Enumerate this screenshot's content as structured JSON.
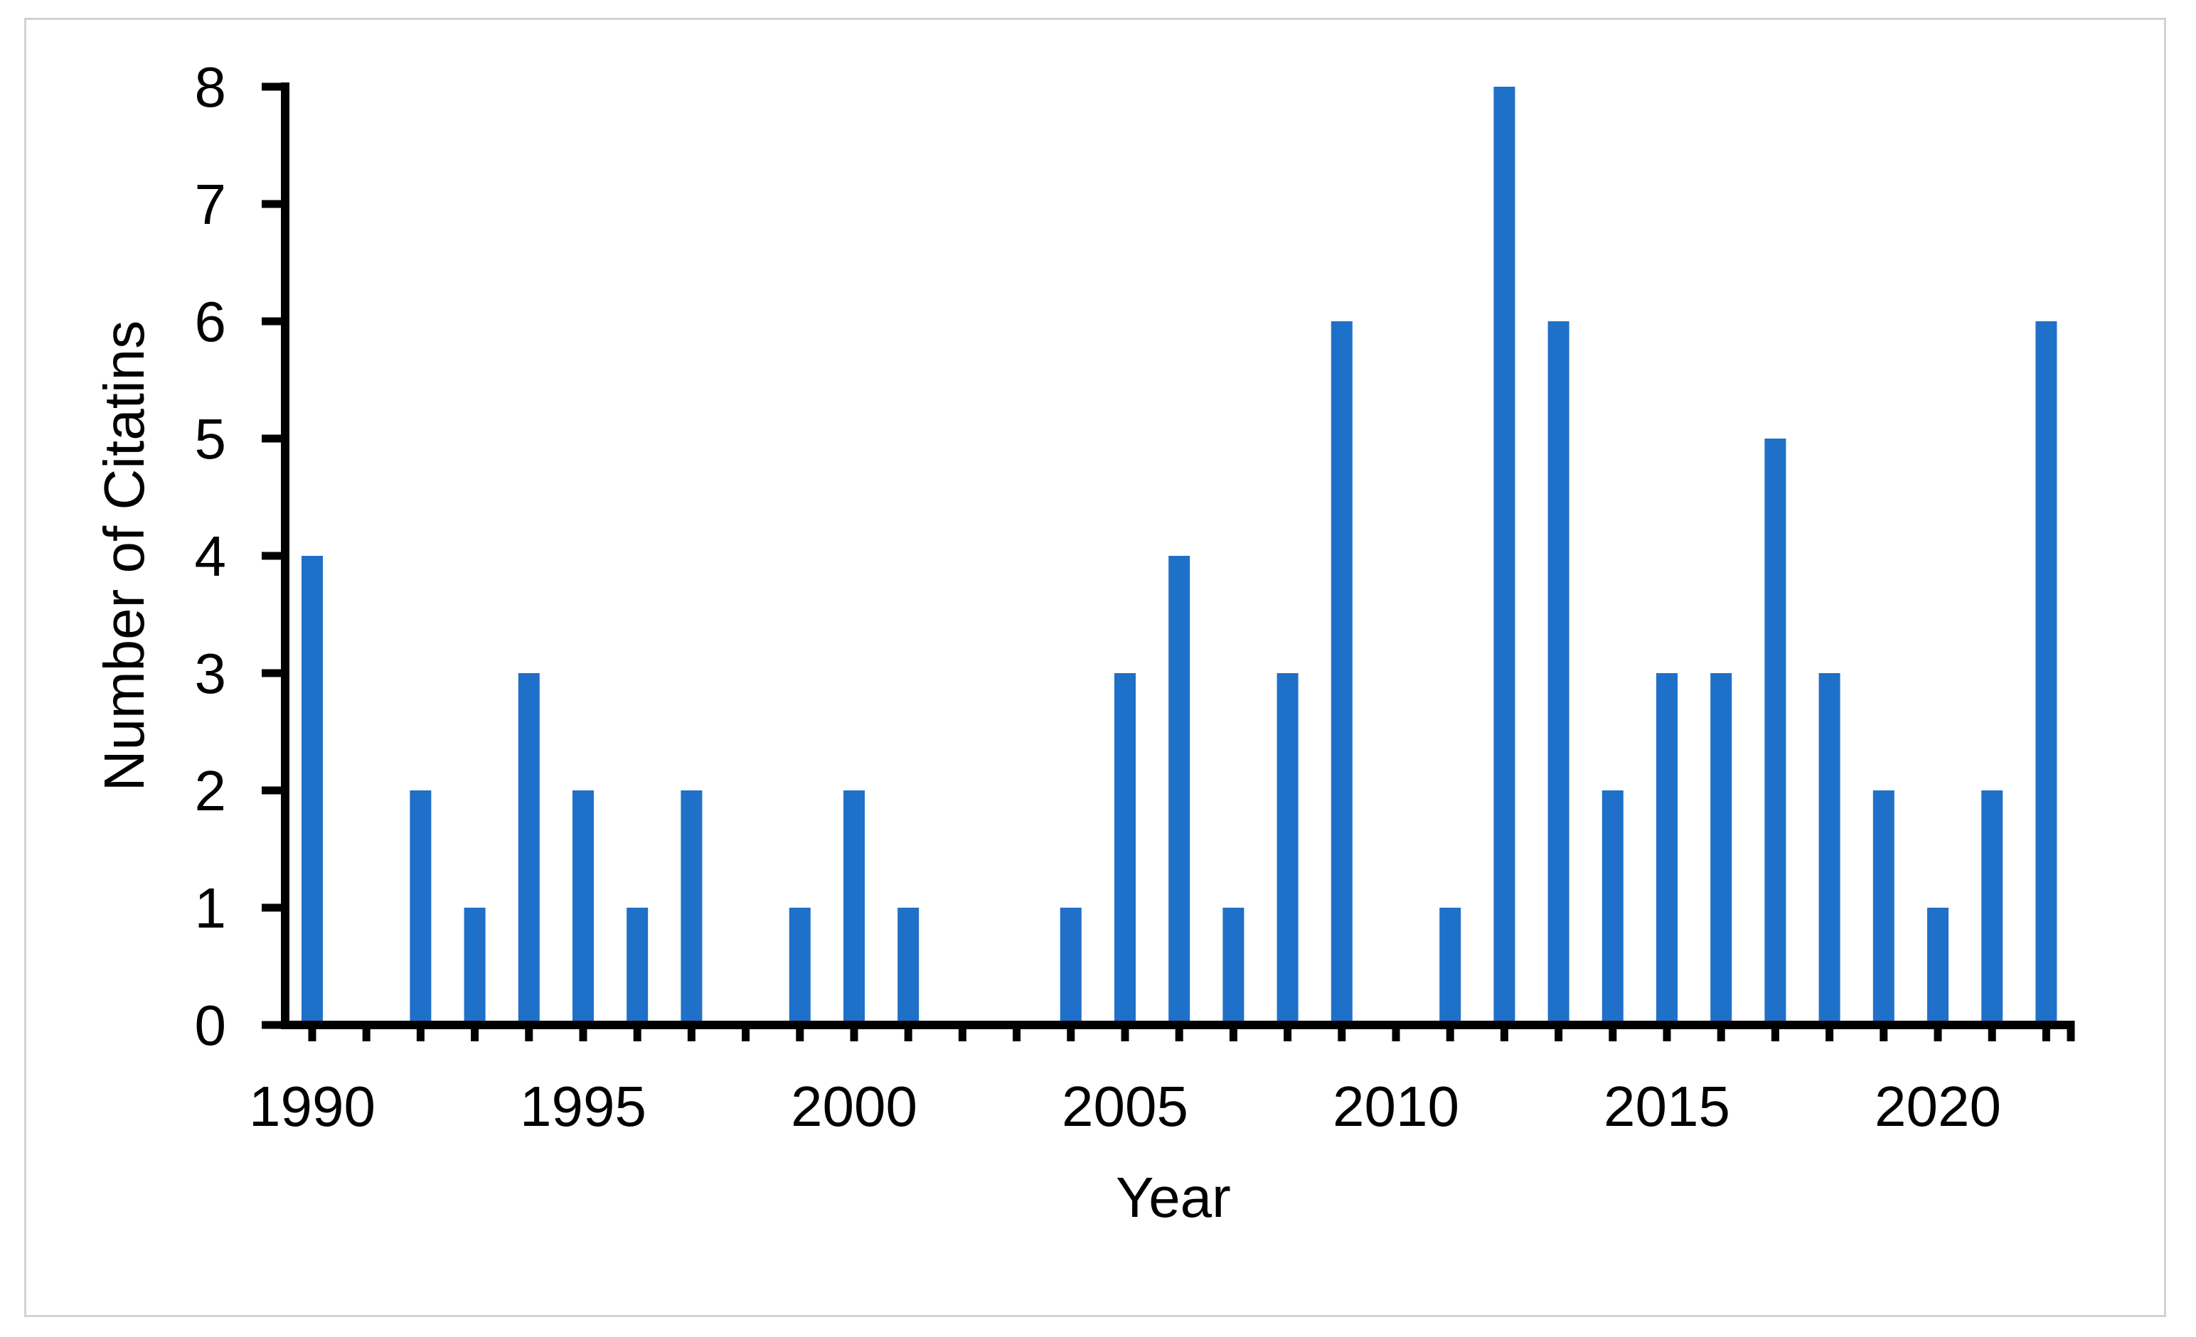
{
  "figure": {
    "frame_border_color": "#d2d2d2",
    "background_color": "#ffffff"
  },
  "chart_data": {
    "type": "bar",
    "title": "",
    "xlabel": "Year",
    "ylabel": "Number of Citatins",
    "categories": [
      1990,
      1991,
      1992,
      1993,
      1994,
      1995,
      1996,
      1997,
      1998,
      1999,
      2000,
      2001,
      2002,
      2003,
      2004,
      2005,
      2006,
      2007,
      2008,
      2009,
      2010,
      2011,
      2012,
      2013,
      2014,
      2015,
      2016,
      2017,
      2018,
      2019,
      2020,
      2021,
      2022
    ],
    "values": [
      4,
      0,
      2,
      1,
      3,
      2,
      1,
      2,
      0,
      1,
      2,
      1,
      0,
      0,
      1,
      3,
      4,
      1,
      3,
      6,
      0,
      1,
      8,
      6,
      2,
      3,
      3,
      5,
      3,
      2,
      1,
      2,
      6
    ],
    "ylim": [
      0,
      8
    ],
    "yticks": [
      0,
      1,
      2,
      3,
      4,
      5,
      6,
      7,
      8
    ],
    "xtick_label_years": [
      1990,
      1995,
      2000,
      2005,
      2010,
      2015,
      2020
    ],
    "bar_color": "#1F70C8",
    "axis_color": "#000000",
    "text_color": "#000000",
    "grid": false,
    "legend": false
  }
}
